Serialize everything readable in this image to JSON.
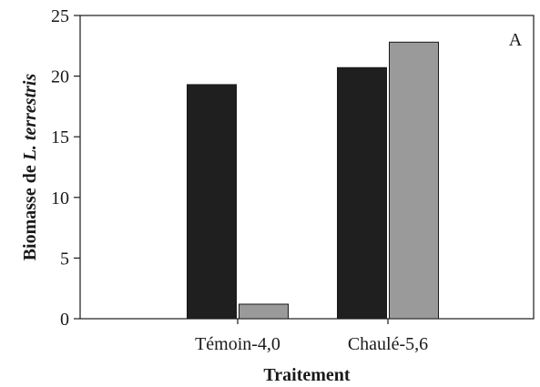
{
  "chart_data": {
    "type": "bar",
    "categories": [
      "Témoin-4,0",
      "Chaulé-5,6"
    ],
    "series": [
      {
        "values": [
          19.3,
          20.7
        ],
        "color": "#1f1f1f"
      },
      {
        "values": [
          1.2,
          22.8
        ],
        "color": "#9a9a9a"
      }
    ],
    "xlabel": "Traitement",
    "ylabel_prefix": "Biomasse de ",
    "ylabel_italic": "L. terrestris",
    "ylim": [
      0,
      25
    ],
    "yticks": [
      "0",
      "5",
      "10",
      "15",
      "20",
      "25"
    ],
    "panel_label": "A",
    "grid": false,
    "legend": "none"
  }
}
